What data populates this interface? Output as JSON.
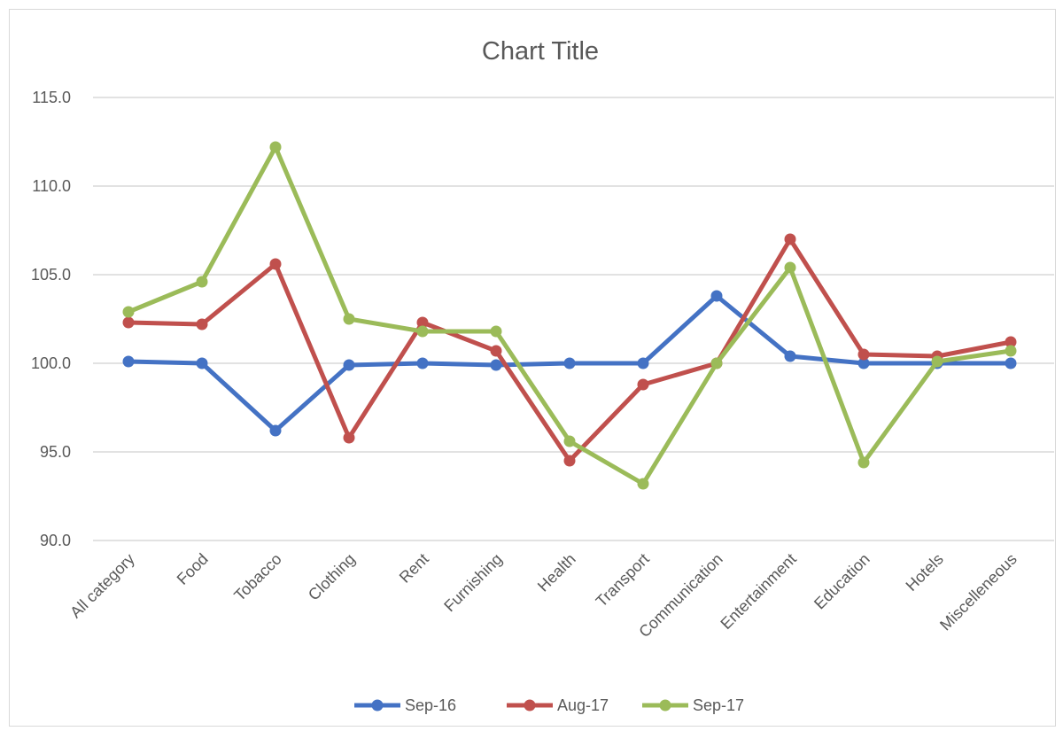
{
  "chart_data": {
    "type": "line",
    "title": "Chart Title",
    "xlabel": "",
    "ylabel": "",
    "ylim": [
      90.0,
      115.0
    ],
    "yticks": [
      "90.0",
      "95.0",
      "100.0",
      "105.0",
      "110.0",
      "115.0"
    ],
    "grid": true,
    "legend_position": "bottom",
    "categories": [
      "All category",
      "Food",
      "Tobacco",
      "Clothing",
      "Rent",
      "Furnishing",
      "Health",
      "Transport",
      "Communication",
      "Entertainment",
      "Education",
      "Hotels",
      "Miscelleneous"
    ],
    "series": [
      {
        "name": "Sep-16",
        "color": "#4472c4",
        "values": [
          100.1,
          100.0,
          96.2,
          99.9,
          100.0,
          99.9,
          100.0,
          100.0,
          103.8,
          100.4,
          100.0,
          100.0,
          100.0
        ]
      },
      {
        "name": "Aug-17",
        "color": "#c0504d",
        "values": [
          102.3,
          102.2,
          105.6,
          95.8,
          102.3,
          100.7,
          94.5,
          98.8,
          100.0,
          107.0,
          100.5,
          100.4,
          101.2
        ]
      },
      {
        "name": "Sep-17",
        "color": "#9bbb59",
        "values": [
          102.9,
          104.6,
          112.2,
          102.5,
          101.8,
          101.8,
          95.6,
          93.2,
          100.0,
          105.4,
          94.4,
          100.1,
          100.7
        ]
      }
    ]
  }
}
